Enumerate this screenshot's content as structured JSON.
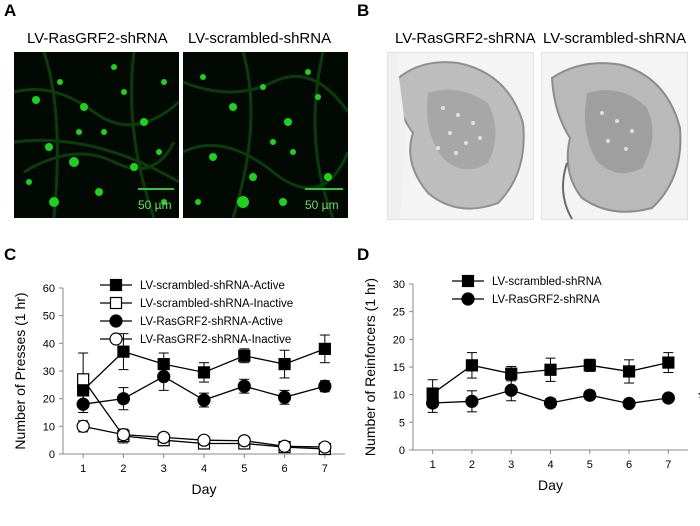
{
  "panels": {
    "A": {
      "letter": "A",
      "left_title": "LV-RasGRF2-shRNA",
      "right_title": "LV-scrambled-shRNA",
      "scale_label": "50 µm",
      "image_color": "#1fd11f"
    },
    "B": {
      "letter": "B",
      "left_title": "LV-RasGRF2-shRNA",
      "right_title": "LV-scrambled-shRNA"
    },
    "C": {
      "letter": "C"
    },
    "D": {
      "letter": "D"
    }
  },
  "chart_data": [
    {
      "panel": "C",
      "type": "line",
      "xlabel": "Day",
      "ylabel": "Number of Presses (1 hr)",
      "x": [
        1,
        2,
        3,
        4,
        5,
        6,
        7
      ],
      "xlim": [
        0.5,
        7.5
      ],
      "ylim": [
        0,
        60
      ],
      "yticks": [
        0,
        10,
        20,
        30,
        40,
        50,
        60
      ],
      "grid": false,
      "legend": "top-left",
      "series": [
        {
          "name": "LV-scrambled-shRNA-Active",
          "marker": "square",
          "fill": "filled",
          "values": [
            23,
            37,
            32.5,
            29.5,
            35.5,
            32.5,
            38
          ],
          "errors": [
            4,
            6.5,
            4,
            3.5,
            2.5,
            5,
            5
          ]
        },
        {
          "name": "LV-scrambled-shRNA-Inactive",
          "marker": "square",
          "fill": "open",
          "values": [
            27,
            6.5,
            5,
            3.8,
            3.8,
            2.5,
            1.8
          ],
          "errors": [
            9.5,
            2.5,
            2,
            1.5,
            1.5,
            1.2,
            1
          ]
        },
        {
          "name": "LV-RasGRF2-shRNA-Active",
          "marker": "circle",
          "fill": "filled",
          "values": [
            18,
            20,
            28,
            19.5,
            24.5,
            20.5,
            24.5
          ],
          "errors": [
            3,
            4,
            5,
            2.5,
            2.5,
            2.5,
            2
          ]
        },
        {
          "name": "LV-RasGRF2-shRNA-Inactive",
          "marker": "circle",
          "fill": "open",
          "values": [
            10,
            7,
            6,
            5,
            4.8,
            2.8,
            2.5
          ],
          "errors": [
            2,
            1.8,
            1.5,
            1.2,
            1.2,
            1,
            0.8
          ]
        }
      ]
    },
    {
      "panel": "D",
      "type": "line",
      "xlabel": "Day",
      "ylabel": "Number of Reinforcers (1 hr)",
      "x": [
        1,
        2,
        3,
        4,
        5,
        6,
        7
      ],
      "xlim": [
        0.5,
        7.5
      ],
      "ylim": [
        0,
        30
      ],
      "yticks": [
        0,
        5,
        10,
        15,
        20,
        25,
        30
      ],
      "grid": false,
      "legend": "top-left",
      "annotation": "*",
      "series": [
        {
          "name": "LV-scrambled-shRNA",
          "marker": "square",
          "fill": "filled",
          "values": [
            10.2,
            15.3,
            13.8,
            14.5,
            15.3,
            14.2,
            15.8
          ],
          "errors": [
            2.5,
            2.3,
            1.3,
            2.1,
            1.1,
            2.1,
            1.8
          ]
        },
        {
          "name": "LV-RasGRF2-shRNA",
          "marker": "circle",
          "fill": "filled",
          "values": [
            8.5,
            8.8,
            10.8,
            8.5,
            9.9,
            8.4,
            9.4
          ],
          "errors": [
            1.7,
            1.9,
            1.9,
            0.8,
            0.8,
            0.5,
            0.6
          ]
        }
      ]
    }
  ]
}
